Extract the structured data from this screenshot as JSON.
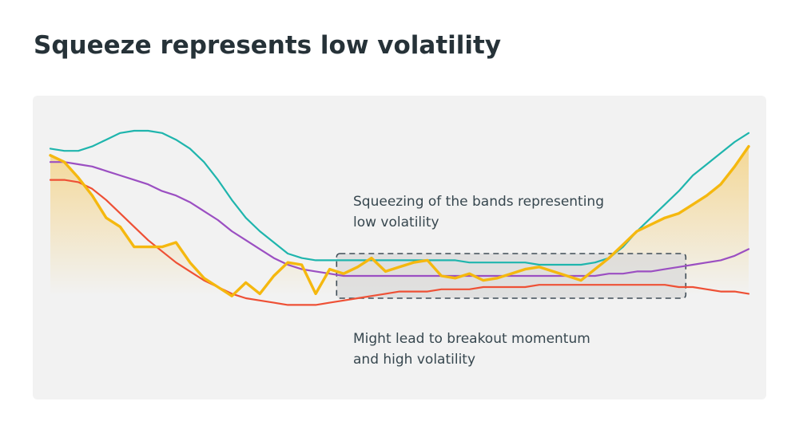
{
  "page": {
    "title": "Squeeze represents low volatility"
  },
  "annotations": {
    "top_line1": "Squeezing of the bands representing",
    "top_line2": "low volatility",
    "bottom_line1": "Might lead to breakout momentum",
    "bottom_line2": "and high volatility"
  },
  "colors": {
    "background_panel": "#f2f2f2",
    "upper_band": "#1fb5ad",
    "middle_band": "#9b4fc2",
    "lower_band": "#ee5035",
    "price": "#f5b80f",
    "price_fill": "#f5c24a",
    "squeeze_box": "#3f4d57",
    "squeeze_fill": "#dcdcdc"
  },
  "chart_data": {
    "type": "line",
    "x": [
      0,
      1,
      2,
      3,
      4,
      5,
      6,
      7,
      8,
      9,
      10,
      11,
      12,
      13,
      14,
      15,
      16,
      17,
      18,
      19,
      20,
      21,
      22,
      23,
      24,
      25,
      26,
      27,
      28,
      29,
      30,
      31,
      32,
      33,
      34,
      35,
      36,
      37,
      38,
      39,
      40,
      41,
      42,
      43,
      44,
      45,
      46,
      47,
      48,
      49,
      50
    ],
    "xlim": [
      0,
      50
    ],
    "ylim": [
      0,
      100
    ],
    "grid": false,
    "legend": "none",
    "series": [
      {
        "key": "upper",
        "values": [
          87,
          86,
          86,
          88,
          91,
          94,
          95,
          95,
          94,
          91,
          87,
          81,
          73,
          64,
          56,
          50,
          45,
          40,
          38,
          37,
          37,
          37,
          37,
          37,
          37,
          37,
          37,
          37,
          37,
          37,
          36,
          36,
          36,
          36,
          36,
          35,
          35,
          35,
          35,
          36,
          38,
          43,
          50,
          56,
          62,
          68,
          75,
          80,
          85,
          90,
          94
        ]
      },
      {
        "key": "middle",
        "values": [
          81,
          81,
          80,
          79,
          77,
          75,
          73,
          71,
          68,
          66,
          63,
          59,
          55,
          50,
          46,
          42,
          38,
          35,
          33,
          32,
          31,
          30,
          30,
          30,
          30,
          30,
          30,
          30,
          30,
          30,
          30,
          30,
          30,
          30,
          30,
          30,
          30,
          30,
          30,
          30,
          31,
          31,
          32,
          32,
          33,
          34,
          35,
          36,
          37,
          39,
          42
        ]
      },
      {
        "key": "lower",
        "values": [
          73,
          73,
          72,
          69,
          64,
          58,
          52,
          46,
          41,
          36,
          32,
          28,
          25,
          22,
          20,
          19,
          18,
          17,
          17,
          17,
          18,
          19,
          20,
          21,
          22,
          23,
          23,
          23,
          24,
          24,
          24,
          25,
          25,
          25,
          25,
          26,
          26,
          26,
          26,
          26,
          26,
          26,
          26,
          26,
          26,
          25,
          25,
          24,
          23,
          23,
          22
        ]
      },
      {
        "key": "price",
        "values": [
          84,
          81,
          74,
          66,
          56,
          52,
          43,
          43,
          43,
          45,
          36,
          29,
          25,
          21,
          27,
          22,
          30,
          36,
          35,
          22,
          33,
          31,
          34,
          38,
          32,
          34,
          36,
          37,
          30,
          29,
          31,
          28,
          29,
          31,
          33,
          34,
          32,
          30,
          28,
          33,
          38,
          44,
          50,
          53,
          56,
          58,
          62,
          66,
          71,
          79,
          88
        ]
      }
    ],
    "squeeze_box": {
      "x_start": 20.5,
      "x_end": 45.5,
      "y_low": 20,
      "y_high": 40
    }
  }
}
